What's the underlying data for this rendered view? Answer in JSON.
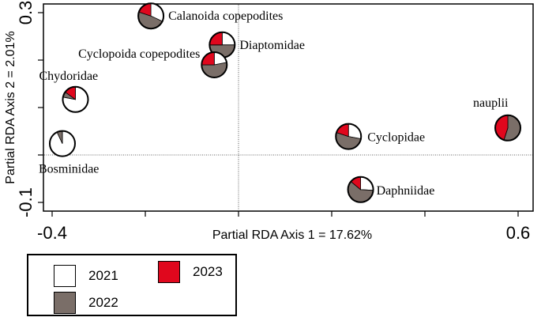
{
  "chart_data": {
    "type": "scatter",
    "subtype": "pie-glyph ordination (RDA biplot)",
    "xlabel": "Partial RDA Axis 1 = 17.62%",
    "ylabel": "Partial RDA Axis 2 = 2.01%",
    "xlim": [
      -0.42,
      0.61
    ],
    "ylim": [
      -0.13,
      0.32
    ],
    "x_ticks": [
      -0.4,
      0.6
    ],
    "y_ticks": [
      0.3,
      -0.1
    ],
    "x_tick_labels": [
      "-0.4",
      "0.6"
    ],
    "y_tick_labels": [
      "0.3",
      "-0.1"
    ],
    "reference_lines": {
      "x": 0,
      "y": 0
    },
    "grid": false,
    "legend_position": "bottom-left, outside plot",
    "series": [
      {
        "name": "2021",
        "color": "#ffffff"
      },
      {
        "name": "2022",
        "color": "#7a6e68"
      },
      {
        "name": "2023",
        "color": "#e0071d"
      }
    ],
    "points": [
      {
        "label": "Calanoida copepodites",
        "x": -0.188,
        "y": 0.293,
        "shares": {
          "2021": 0.32,
          "2022": 0.48,
          "2023": 0.2
        }
      },
      {
        "label": "Diaptomidae",
        "x": -0.035,
        "y": 0.232,
        "shares": {
          "2021": 0.25,
          "2022": 0.5,
          "2023": 0.25
        }
      },
      {
        "label": "Cyclopoida copepodites",
        "x": -0.052,
        "y": 0.19,
        "shares": {
          "2021": 0.22,
          "2022": 0.53,
          "2023": 0.25
        }
      },
      {
        "label": "Chydoridae",
        "x": -0.35,
        "y": 0.117,
        "shares": {
          "2021": 0.78,
          "2022": 0.07,
          "2023": 0.15
        }
      },
      {
        "label": "Bosminidae",
        "x": -0.378,
        "y": 0.024,
        "shares": {
          "2021": 0.93,
          "2022": 0.07,
          "2023": 0.0
        }
      },
      {
        "label": "Cyclopidae",
        "x": 0.236,
        "y": 0.039,
        "shares": {
          "2021": 0.28,
          "2022": 0.52,
          "2023": 0.2
        }
      },
      {
        "label": "Daphniidae",
        "x": 0.262,
        "y": -0.073,
        "shares": {
          "2021": 0.26,
          "2022": 0.6,
          "2023": 0.14
        }
      },
      {
        "label": "nauplii",
        "x": 0.578,
        "y": 0.057,
        "shares": {
          "2021": 0.0,
          "2022": 0.55,
          "2023": 0.45
        }
      }
    ]
  },
  "legend": {
    "items": [
      {
        "label": "2021",
        "color": "#ffffff"
      },
      {
        "label": "2023",
        "color": "#e0071d"
      },
      {
        "label": "2022",
        "color": "#7a6e68"
      }
    ]
  }
}
